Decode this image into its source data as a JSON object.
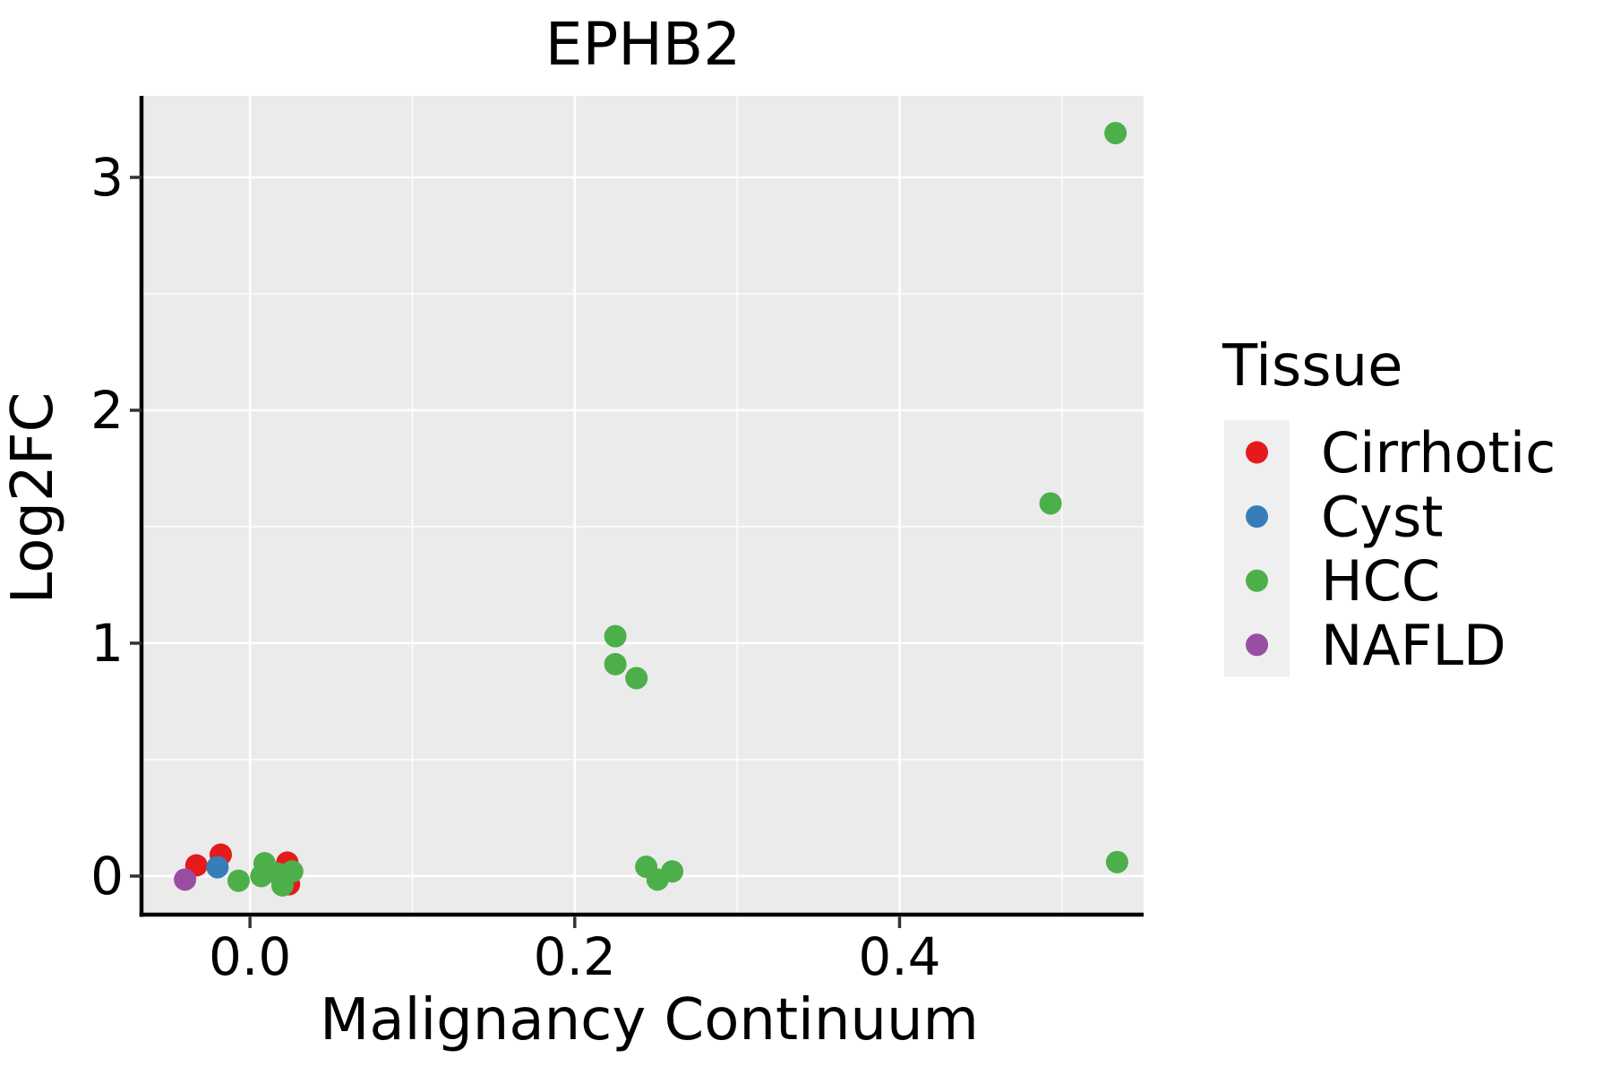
{
  "chart_data": {
    "type": "scatter",
    "title": "EPHB2",
    "xlabel": "Malignancy Continuum",
    "ylabel": "Log2FC",
    "legend_title": "Tissue",
    "xlim": [
      -0.0657,
      0.5503
    ],
    "ylim": [
      -0.1656,
      3.35
    ],
    "x_ticks": [
      {
        "v": 0.0,
        "label": "0.0"
      },
      {
        "v": 0.2,
        "label": "0.2"
      },
      {
        "v": 0.4,
        "label": "0.4"
      }
    ],
    "y_ticks": [
      {
        "v": 0,
        "label": "0"
      },
      {
        "v": 1,
        "label": "1"
      },
      {
        "v": 2,
        "label": "2"
      },
      {
        "v": 3,
        "label": "3"
      }
    ],
    "x_minor_ticks": [
      0.1,
      0.3,
      0.5
    ],
    "y_minor_ticks": [
      0.5,
      1.5,
      2.5
    ],
    "grid": true,
    "legend_position": "right",
    "panel_bg": "#EBEBEB",
    "grid_color": "#FFFFFF",
    "axis_line_color": "#000000",
    "tick_mark_color": "#333333",
    "legend_key_fill": "#EFEFEF",
    "point_radius": 12.5,
    "draw_order": [
      "Cirrhotic",
      "Cyst",
      "NAFLD",
      "HCC"
    ],
    "series": [
      {
        "name": "Cirrhotic",
        "color": "#E41A1C",
        "points": [
          [
            -0.033,
            0.046
          ],
          [
            -0.018,
            0.092
          ],
          [
            0.023,
            0.058
          ],
          [
            0.024,
            -0.035
          ]
        ]
      },
      {
        "name": "Cyst",
        "color": "#377EB8",
        "points": [
          [
            -0.02,
            0.038
          ]
        ]
      },
      {
        "name": "HCC",
        "color": "#4DAF4A",
        "points": [
          [
            0.533,
            3.19
          ],
          [
            0.493,
            1.6
          ],
          [
            0.225,
            1.03
          ],
          [
            0.225,
            0.91
          ],
          [
            0.238,
            0.85
          ],
          [
            0.534,
            0.06
          ],
          [
            0.244,
            0.04
          ],
          [
            0.251,
            -0.015
          ],
          [
            0.26,
            0.02
          ],
          [
            -0.007,
            -0.02
          ],
          [
            0.009,
            0.055
          ],
          [
            0.007,
            0.0
          ],
          [
            0.017,
            0.01
          ],
          [
            0.026,
            0.02
          ],
          [
            0.02,
            -0.04
          ]
        ]
      },
      {
        "name": "NAFLD",
        "color": "#984EA3",
        "points": [
          [
            -0.04,
            -0.015
          ]
        ]
      }
    ]
  }
}
